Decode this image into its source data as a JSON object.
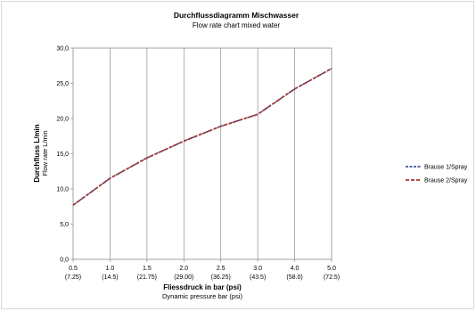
{
  "chart_data": {
    "type": "line",
    "title": "Durchflussdiagramm Mischwasser",
    "subtitle": "Flow rate chart mixed water",
    "ylabel": "Durchfluss L/min",
    "ylabel_sub": "Flow rate L/min",
    "xlabel": "Fliessdruck in bar (psi)",
    "xlabel_sub": "Dynamic pressure bar (psi)",
    "ylim": [
      0,
      30
    ],
    "y_ticks": [
      "0,0",
      "5,0",
      "10,0",
      "15,0",
      "20,0",
      "25,0",
      "30,0"
    ],
    "categories": [
      "0.5",
      "1.0",
      "1.5",
      "2.0",
      "2.5",
      "3.0",
      "4.0",
      "5.0"
    ],
    "categories_sub": [
      "(7.25)",
      "(14.5)",
      "(21.75)",
      "(29.00)",
      "(36.25)",
      "(43.5)",
      "(58.0)",
      "(72.5)"
    ],
    "grid": "vertical",
    "legend_position": "right",
    "series": [
      {
        "name": "Brause 1/Spray",
        "color": "#1f3c8c",
        "values": [
          7.7,
          11.5,
          14.4,
          16.8,
          18.9,
          20.6,
          24.2,
          27.1
        ]
      },
      {
        "name": "Brause 2/Spray",
        "color": "#a8352e",
        "values": [
          7.7,
          11.5,
          14.4,
          16.8,
          18.9,
          20.6,
          24.2,
          27.1
        ]
      }
    ]
  }
}
